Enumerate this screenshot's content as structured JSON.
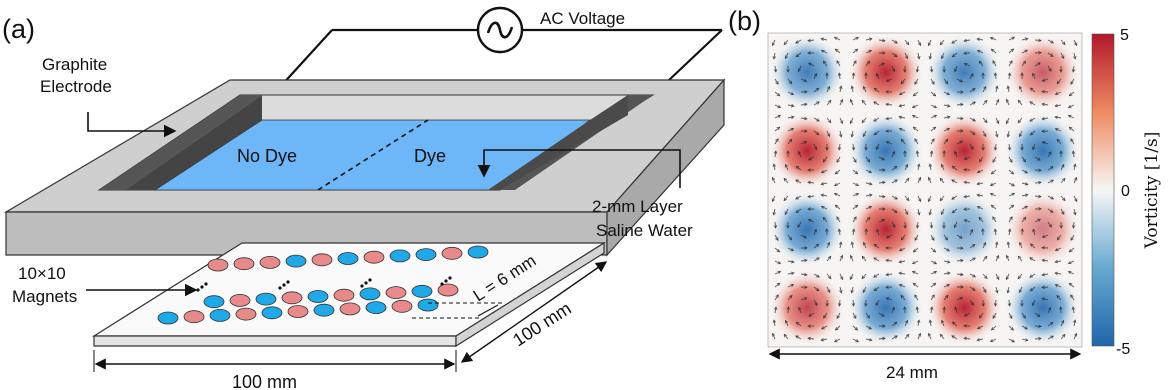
{
  "panel_a": {
    "label": "(a)",
    "ac_voltage": "AC Voltage",
    "electrode_line1": "Graphite",
    "electrode_line2": "Electrode",
    "no_dye": "No Dye",
    "dye": "Dye",
    "layer_line1": "2-mm Layer",
    "layer_line2": "Saline Water",
    "magnets_line1": "10×10",
    "magnets_line2": "Magnets",
    "spacing": "L = 6 mm",
    "dim_side": "100 mm",
    "dim_bottom": "100 mm"
  },
  "panel_b": {
    "label": "(b)",
    "scale": "24 mm",
    "colorbar_label": "Vorticity [1/s]",
    "colorbar_ticks": [
      "5",
      "0",
      "-5"
    ],
    "vortex_signs": [
      [
        -1,
        1,
        -1,
        1
      ],
      [
        1,
        -1,
        1,
        -1
      ],
      [
        -1,
        1,
        -1,
        1
      ],
      [
        1,
        -1,
        1,
        -1
      ]
    ],
    "vortex_strength": [
      [
        0.85,
        0.95,
        0.85,
        0.7
      ],
      [
        0.95,
        0.9,
        0.95,
        0.9
      ],
      [
        0.9,
        0.95,
        0.6,
        0.55
      ],
      [
        0.8,
        0.9,
        0.95,
        0.9
      ]
    ]
  },
  "colors": {
    "frame": "#c9c9c9",
    "electrode": "#555555",
    "water": "#6db6f7",
    "magnet_blue": "#1fa9e8",
    "magnet_red": "#e88a8a",
    "vort_pos": "#b2182b",
    "vort_neg": "#2166ac"
  },
  "magnets_pattern": [
    [
      "r",
      "r",
      "r",
      "b",
      "r",
      "b",
      "r",
      "b",
      "b",
      "r",
      "b"
    ],
    [
      "b",
      "r",
      "b",
      "r",
      "b",
      "r",
      "b",
      "r",
      "b",
      "r",
      "b"
    ]
  ]
}
